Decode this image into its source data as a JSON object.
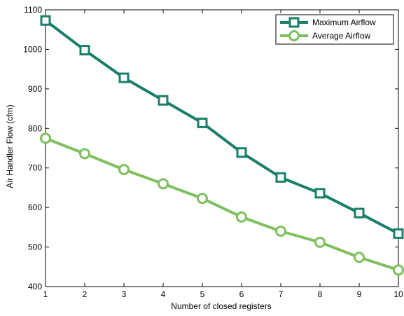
{
  "chart_data": {
    "type": "line",
    "title": "",
    "xlabel": "Number of closed registers",
    "ylabel": "Air Handler Flow (cfm)",
    "x": [
      1,
      2,
      3,
      4,
      5,
      6,
      7,
      8,
      9,
      10
    ],
    "xlim": [
      1,
      10
    ],
    "ylim": [
      400,
      1100
    ],
    "xticks": [
      1,
      2,
      3,
      4,
      5,
      6,
      7,
      8,
      9,
      10
    ],
    "yticks": [
      400,
      500,
      600,
      700,
      800,
      900,
      1000,
      1100
    ],
    "grid": false,
    "legend_position": "top-right",
    "series": [
      {
        "name": "Maximum Airflow",
        "marker": "square",
        "color": "#1a7f68",
        "values": [
          1073,
          998,
          928,
          871,
          814,
          739,
          676,
          636,
          586,
          534
        ]
      },
      {
        "name": "Average Airflow",
        "marker": "circle",
        "color": "#7fbf5f",
        "values": [
          775,
          736,
          696,
          660,
          623,
          576,
          540,
          512,
          474,
          442
        ]
      }
    ]
  }
}
